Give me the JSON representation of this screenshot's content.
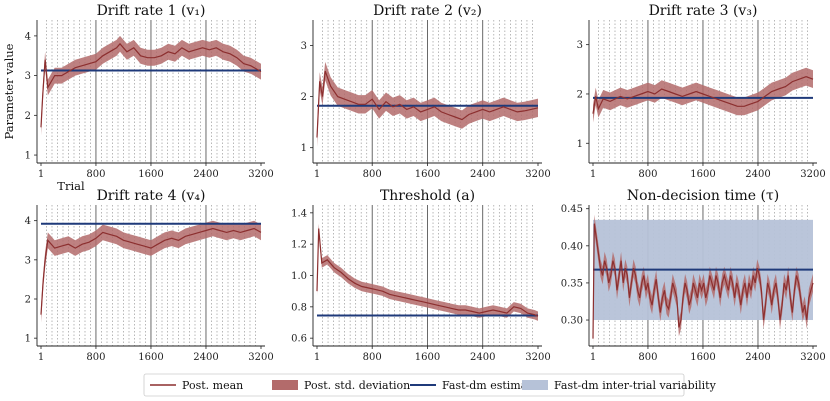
{
  "colors": {
    "mean": "#8c2f2f",
    "sd_band": "#b36b6b",
    "fastdm": "#1f3a7a",
    "fastdm_var": "#b6c2d8",
    "grid_major": "#444444",
    "grid_minor": "#9a9a9a"
  },
  "legend": {
    "mean": "Post. mean",
    "sd": "Post. std. deviation",
    "fastdm": "Fast-dm estimate",
    "fastdm_var": "Fast-dm inter-trial variability"
  },
  "chart_data": [
    {
      "type": "line",
      "title": "Drift rate 1 (v₁)",
      "ylabel": "Parameter value",
      "xlabel": "Trial",
      "xlim": [
        1,
        3200
      ],
      "xticks": [
        1,
        800,
        1600,
        2400,
        3200
      ],
      "ylim": [
        0.8,
        4.4
      ],
      "yticks": [
        1,
        2,
        3,
        4
      ],
      "fastdm": 3.13,
      "points": [
        [
          1,
          1.7
        ],
        [
          25,
          2.5
        ],
        [
          60,
          3.4
        ],
        [
          100,
          2.7
        ],
        [
          200,
          3.0
        ],
        [
          300,
          3.0
        ],
        [
          400,
          3.1
        ],
        [
          500,
          3.2
        ],
        [
          600,
          3.25
        ],
        [
          800,
          3.35
        ],
        [
          900,
          3.5
        ],
        [
          1000,
          3.6
        ],
        [
          1100,
          3.7
        ],
        [
          1150,
          3.8
        ],
        [
          1250,
          3.6
        ],
        [
          1350,
          3.7
        ],
        [
          1450,
          3.5
        ],
        [
          1550,
          3.45
        ],
        [
          1650,
          3.45
        ],
        [
          1750,
          3.5
        ],
        [
          1850,
          3.6
        ],
        [
          1950,
          3.55
        ],
        [
          2050,
          3.7
        ],
        [
          2150,
          3.6
        ],
        [
          2250,
          3.65
        ],
        [
          2350,
          3.7
        ],
        [
          2450,
          3.65
        ],
        [
          2550,
          3.7
        ],
        [
          2650,
          3.6
        ],
        [
          2750,
          3.55
        ],
        [
          2850,
          3.45
        ],
        [
          2950,
          3.3
        ],
        [
          3050,
          3.25
        ],
        [
          3200,
          3.1
        ]
      ],
      "sd": 0.2
    },
    {
      "type": "line",
      "title": "Drift rate 2 (v₂)",
      "xlim": [
        1,
        3200
      ],
      "xticks": [
        1,
        800,
        1600,
        2400,
        3200
      ],
      "ylim": [
        0.7,
        3.5
      ],
      "yticks": [
        1,
        2,
        3
      ],
      "fastdm": 1.82,
      "points": [
        [
          1,
          1.2
        ],
        [
          40,
          2.3
        ],
        [
          80,
          2.0
        ],
        [
          120,
          2.5
        ],
        [
          200,
          2.2
        ],
        [
          300,
          2.0
        ],
        [
          400,
          1.95
        ],
        [
          500,
          1.9
        ],
        [
          600,
          1.85
        ],
        [
          700,
          1.85
        ],
        [
          800,
          1.95
        ],
        [
          900,
          1.75
        ],
        [
          1000,
          1.9
        ],
        [
          1100,
          1.8
        ],
        [
          1200,
          1.85
        ],
        [
          1300,
          1.75
        ],
        [
          1400,
          1.8
        ],
        [
          1500,
          1.7
        ],
        [
          1600,
          1.75
        ],
        [
          1700,
          1.8
        ],
        [
          1800,
          1.7
        ],
        [
          1900,
          1.65
        ],
        [
          2000,
          1.6
        ],
        [
          2100,
          1.55
        ],
        [
          2200,
          1.65
        ],
        [
          2300,
          1.7
        ],
        [
          2400,
          1.75
        ],
        [
          2500,
          1.7
        ],
        [
          2600,
          1.75
        ],
        [
          2700,
          1.8
        ],
        [
          2800,
          1.75
        ],
        [
          2900,
          1.7
        ],
        [
          3000,
          1.72
        ],
        [
          3100,
          1.75
        ],
        [
          3200,
          1.78
        ]
      ],
      "sd": 0.18
    },
    {
      "type": "line",
      "title": "Drift rate 3 (v₃)",
      "xlim": [
        1,
        3200
      ],
      "xticks": [
        1,
        800,
        1600,
        2400,
        3200
      ],
      "ylim": [
        0.6,
        3.5
      ],
      "yticks": [
        1,
        2,
        3
      ],
      "fastdm": 1.92,
      "points": [
        [
          1,
          1.6
        ],
        [
          40,
          1.95
        ],
        [
          80,
          1.7
        ],
        [
          150,
          1.9
        ],
        [
          250,
          1.85
        ],
        [
          400,
          1.95
        ],
        [
          500,
          1.9
        ],
        [
          600,
          1.95
        ],
        [
          700,
          2.0
        ],
        [
          800,
          2.05
        ],
        [
          900,
          2.0
        ],
        [
          1000,
          2.1
        ],
        [
          1100,
          2.05
        ],
        [
          1200,
          2.0
        ],
        [
          1300,
          1.95
        ],
        [
          1400,
          2.0
        ],
        [
          1500,
          2.05
        ],
        [
          1600,
          2.0
        ],
        [
          1700,
          1.95
        ],
        [
          1800,
          1.9
        ],
        [
          1900,
          1.85
        ],
        [
          2000,
          1.8
        ],
        [
          2100,
          1.75
        ],
        [
          2200,
          1.75
        ],
        [
          2300,
          1.8
        ],
        [
          2400,
          1.85
        ],
        [
          2500,
          1.95
        ],
        [
          2600,
          2.05
        ],
        [
          2700,
          2.1
        ],
        [
          2800,
          2.15
        ],
        [
          2900,
          2.25
        ],
        [
          3000,
          2.3
        ],
        [
          3100,
          2.35
        ],
        [
          3200,
          2.3
        ]
      ],
      "sd": 0.18
    },
    {
      "type": "line",
      "title": "Drift rate 4 (v₄)",
      "xlim": [
        1,
        3200
      ],
      "xticks": [
        1,
        800,
        1600,
        2400,
        3200
      ],
      "ylim": [
        0.8,
        4.4
      ],
      "yticks": [
        1,
        2,
        3,
        4
      ],
      "fastdm": 3.92,
      "points": [
        [
          1,
          1.6
        ],
        [
          30,
          2.4
        ],
        [
          60,
          3.0
        ],
        [
          100,
          3.5
        ],
        [
          200,
          3.3
        ],
        [
          300,
          3.35
        ],
        [
          400,
          3.4
        ],
        [
          500,
          3.3
        ],
        [
          600,
          3.4
        ],
        [
          700,
          3.45
        ],
        [
          800,
          3.55
        ],
        [
          900,
          3.7
        ],
        [
          1000,
          3.65
        ],
        [
          1100,
          3.6
        ],
        [
          1200,
          3.5
        ],
        [
          1300,
          3.45
        ],
        [
          1400,
          3.4
        ],
        [
          1500,
          3.35
        ],
        [
          1600,
          3.3
        ],
        [
          1700,
          3.4
        ],
        [
          1800,
          3.5
        ],
        [
          1900,
          3.55
        ],
        [
          2000,
          3.5
        ],
        [
          2100,
          3.6
        ],
        [
          2200,
          3.65
        ],
        [
          2300,
          3.7
        ],
        [
          2400,
          3.75
        ],
        [
          2500,
          3.8
        ],
        [
          2600,
          3.75
        ],
        [
          2700,
          3.7
        ],
        [
          2800,
          3.75
        ],
        [
          2900,
          3.7
        ],
        [
          3000,
          3.75
        ],
        [
          3100,
          3.8
        ],
        [
          3200,
          3.7
        ]
      ],
      "sd": 0.2
    },
    {
      "type": "line",
      "title": "Threshold (a)",
      "xlim": [
        1,
        3200
      ],
      "xticks": [
        1,
        800,
        1600,
        2400,
        3200
      ],
      "ylim": [
        0.55,
        1.45
      ],
      "yticks": [
        0.6,
        0.8,
        1.0,
        1.2,
        1.4
      ],
      "fastdm": 0.745,
      "points": [
        [
          1,
          0.9
        ],
        [
          25,
          1.3
        ],
        [
          70,
          1.08
        ],
        [
          150,
          1.1
        ],
        [
          250,
          1.05
        ],
        [
          350,
          1.02
        ],
        [
          450,
          0.98
        ],
        [
          550,
          0.95
        ],
        [
          650,
          0.93
        ],
        [
          750,
          0.92
        ],
        [
          850,
          0.91
        ],
        [
          950,
          0.9
        ],
        [
          1050,
          0.88
        ],
        [
          1150,
          0.87
        ],
        [
          1250,
          0.86
        ],
        [
          1350,
          0.85
        ],
        [
          1450,
          0.84
        ],
        [
          1550,
          0.83
        ],
        [
          1650,
          0.82
        ],
        [
          1750,
          0.81
        ],
        [
          1850,
          0.8
        ],
        [
          1950,
          0.79
        ],
        [
          2050,
          0.78
        ],
        [
          2150,
          0.78
        ],
        [
          2250,
          0.77
        ],
        [
          2350,
          0.76
        ],
        [
          2450,
          0.77
        ],
        [
          2550,
          0.78
        ],
        [
          2650,
          0.77
        ],
        [
          2750,
          0.76
        ],
        [
          2850,
          0.8
        ],
        [
          2950,
          0.79
        ],
        [
          3050,
          0.76
        ],
        [
          3150,
          0.75
        ],
        [
          3200,
          0.74
        ]
      ],
      "sd": 0.03
    },
    {
      "type": "line",
      "title": "Non-decision time (τ)",
      "xlim": [
        1,
        3200
      ],
      "xticks": [
        1,
        800,
        1600,
        2400,
        3200
      ],
      "ylim": [
        0.265,
        0.455
      ],
      "yticks": [
        0.3,
        0.35,
        0.4,
        0.45
      ],
      "fastdm": 0.368,
      "fastdm_band": [
        0.3,
        0.435
      ],
      "points": [
        [
          1,
          0.275
        ],
        [
          20,
          0.43
        ],
        [
          50,
          0.41
        ],
        [
          80,
          0.39
        ],
        [
          110,
          0.37
        ],
        [
          140,
          0.36
        ],
        [
          170,
          0.38
        ],
        [
          200,
          0.37
        ],
        [
          230,
          0.35
        ],
        [
          260,
          0.36
        ],
        [
          290,
          0.38
        ],
        [
          320,
          0.37
        ],
        [
          350,
          0.34
        ],
        [
          380,
          0.36
        ],
        [
          410,
          0.38
        ],
        [
          440,
          0.35
        ],
        [
          470,
          0.37
        ],
        [
          500,
          0.36
        ],
        [
          530,
          0.33
        ],
        [
          560,
          0.35
        ],
        [
          590,
          0.37
        ],
        [
          620,
          0.36
        ],
        [
          650,
          0.34
        ],
        [
          680,
          0.33
        ],
        [
          710,
          0.35
        ],
        [
          740,
          0.36
        ],
        [
          770,
          0.34
        ],
        [
          800,
          0.35
        ],
        [
          830,
          0.33
        ],
        [
          860,
          0.32
        ],
        [
          890,
          0.34
        ],
        [
          920,
          0.355
        ],
        [
          950,
          0.33
        ],
        [
          980,
          0.31
        ],
        [
          1010,
          0.33
        ],
        [
          1040,
          0.34
        ],
        [
          1070,
          0.32
        ],
        [
          1100,
          0.315
        ],
        [
          1130,
          0.33
        ],
        [
          1160,
          0.35
        ],
        [
          1190,
          0.34
        ],
        [
          1220,
          0.33
        ],
        [
          1250,
          0.29
        ],
        [
          1280,
          0.3
        ],
        [
          1310,
          0.33
        ],
        [
          1340,
          0.35
        ],
        [
          1370,
          0.34
        ],
        [
          1400,
          0.32
        ],
        [
          1430,
          0.33
        ],
        [
          1460,
          0.35
        ],
        [
          1490,
          0.34
        ],
        [
          1520,
          0.33
        ],
        [
          1550,
          0.35
        ],
        [
          1580,
          0.34
        ],
        [
          1610,
          0.35
        ],
        [
          1640,
          0.33
        ],
        [
          1670,
          0.34
        ],
        [
          1700,
          0.36
        ],
        [
          1730,
          0.35
        ],
        [
          1760,
          0.34
        ],
        [
          1790,
          0.36
        ],
        [
          1820,
          0.35
        ],
        [
          1850,
          0.33
        ],
        [
          1880,
          0.35
        ],
        [
          1910,
          0.36
        ],
        [
          1940,
          0.35
        ],
        [
          1970,
          0.34
        ],
        [
          2000,
          0.36
        ],
        [
          2030,
          0.35
        ],
        [
          2060,
          0.33
        ],
        [
          2090,
          0.35
        ],
        [
          2120,
          0.34
        ],
        [
          2150,
          0.32
        ],
        [
          2180,
          0.34
        ],
        [
          2210,
          0.35
        ],
        [
          2240,
          0.33
        ],
        [
          2270,
          0.35
        ],
        [
          2300,
          0.34
        ],
        [
          2330,
          0.36
        ],
        [
          2360,
          0.35
        ],
        [
          2390,
          0.37
        ],
        [
          2420,
          0.36
        ],
        [
          2450,
          0.34
        ],
        [
          2480,
          0.3
        ],
        [
          2510,
          0.32
        ],
        [
          2540,
          0.35
        ],
        [
          2570,
          0.34
        ],
        [
          2600,
          0.32
        ],
        [
          2630,
          0.34
        ],
        [
          2660,
          0.35
        ],
        [
          2690,
          0.33
        ],
        [
          2720,
          0.3
        ],
        [
          2750,
          0.32
        ],
        [
          2780,
          0.35
        ],
        [
          2810,
          0.34
        ],
        [
          2840,
          0.36
        ],
        [
          2870,
          0.33
        ],
        [
          2900,
          0.31
        ],
        [
          2930,
          0.34
        ],
        [
          2960,
          0.36
        ],
        [
          2990,
          0.35
        ],
        [
          3020,
          0.33
        ],
        [
          3050,
          0.31
        ],
        [
          3080,
          0.32
        ],
        [
          3110,
          0.3
        ],
        [
          3140,
          0.33
        ],
        [
          3170,
          0.34
        ],
        [
          3200,
          0.35
        ]
      ],
      "sd": 0.012
    }
  ]
}
